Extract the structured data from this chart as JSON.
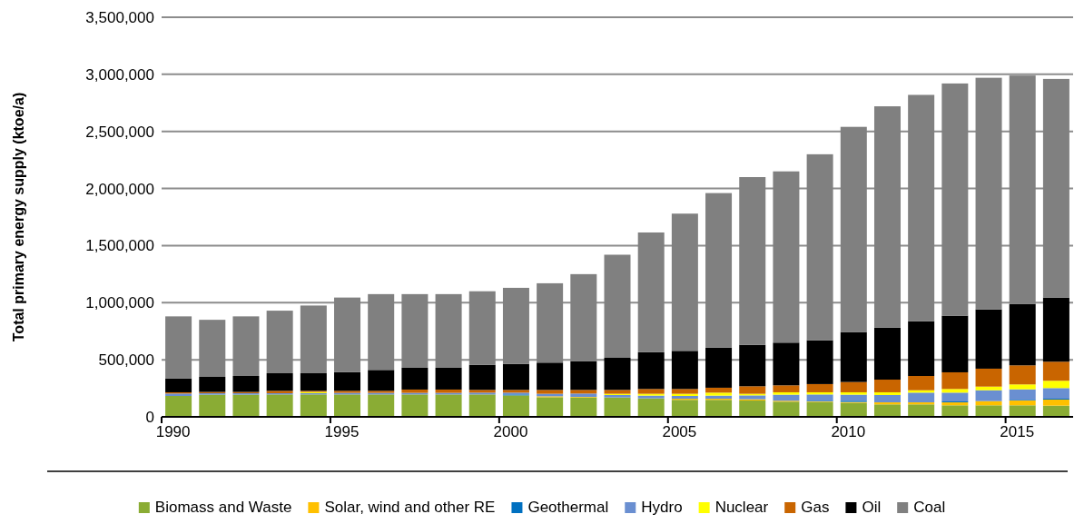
{
  "chart_data": {
    "type": "bar",
    "stacked": true,
    "ylabel": "Total primary energy supply (ktoe/a)",
    "categories": [
      "1990",
      null,
      null,
      null,
      null,
      "1995",
      null,
      null,
      null,
      null,
      "2000",
      null,
      null,
      null,
      null,
      "2005",
      null,
      null,
      null,
      null,
      "2010",
      null,
      null,
      null,
      null,
      "2015",
      null
    ],
    "ylim": [
      0,
      3500000
    ],
    "yticks": [
      {
        "value": 0,
        "label": "0"
      },
      {
        "value": 500000,
        "label": "500,000"
      },
      {
        "value": 1000000,
        "label": "1,000,000"
      },
      {
        "value": 1500000,
        "label": "1,500,000"
      },
      {
        "value": 2000000,
        "label": "2,000,000"
      },
      {
        "value": 2500000,
        "label": "2,500,000"
      },
      {
        "value": 3000000,
        "label": "3,000,000"
      },
      {
        "value": 3500000,
        "label": "3,500,000"
      }
    ],
    "grid": "y",
    "legend": "bottom",
    "series": [
      {
        "name": "Biomass and Waste",
        "color": "#8aac34",
        "values": [
          183000,
          194000,
          194000,
          196000,
          196000,
          196000,
          196000,
          196000,
          196000,
          196000,
          188000,
          172000,
          170000,
          170000,
          162000,
          149000,
          149000,
          143000,
          133000,
          130000,
          122000,
          109000,
          109000,
          101000,
          101000,
          101000,
          98000
        ]
      },
      {
        "name": "Solar, wind and other RE",
        "color": "#ffc000",
        "values": [
          0,
          0,
          0,
          0,
          0,
          0,
          0,
          0,
          0,
          0,
          0,
          8000,
          5000,
          0,
          0,
          10000,
          10000,
          11000,
          8000,
          5000,
          8000,
          18000,
          18000,
          26000,
          37000,
          42000,
          53000
        ]
      },
      {
        "name": "Geothermal",
        "color": "#0070c0",
        "values": [
          0,
          0,
          0,
          0,
          0,
          0,
          0,
          0,
          0,
          0,
          8000,
          0,
          0,
          0,
          0,
          0,
          0,
          0,
          0,
          6000,
          11000,
          0,
          0,
          8000,
          0,
          6000,
          8000
        ]
      },
      {
        "name": "Hydro",
        "color": "#6a8fd1",
        "values": [
          21000,
          13000,
          13000,
          11000,
          11000,
          14000,
          14000,
          14000,
          14000,
          16000,
          16000,
          22000,
          29000,
          21000,
          24000,
          24000,
          27000,
          34000,
          53000,
          55000,
          53000,
          64000,
          85000,
          77000,
          95000,
          92000,
          93000
        ]
      },
      {
        "name": "Nuclear",
        "color": "#ffff00",
        "values": [
          0,
          0,
          0,
          0,
          11000,
          0,
          0,
          0,
          0,
          0,
          0,
          0,
          0,
          11000,
          16000,
          19000,
          26000,
          14000,
          21000,
          19000,
          21000,
          24000,
          21000,
          32000,
          32000,
          43000,
          64000
        ]
      },
      {
        "name": "Gas",
        "color": "#c96500",
        "values": [
          11000,
          11000,
          11000,
          21000,
          10000,
          18000,
          18000,
          29000,
          29000,
          24000,
          24000,
          34000,
          32000,
          34000,
          42000,
          42000,
          43000,
          66000,
          61000,
          72000,
          90000,
          111000,
          125000,
          146000,
          157000,
          167000,
          167000
        ]
      },
      {
        "name": "Oil",
        "color": "#000000",
        "values": [
          122000,
          132000,
          140000,
          154000,
          154000,
          164000,
          183000,
          191000,
          191000,
          220000,
          228000,
          239000,
          252000,
          281000,
          323000,
          334000,
          352000,
          363000,
          374000,
          384000,
          438000,
          456000,
          480000,
          496000,
          519000,
          538000,
          562000
        ]
      },
      {
        "name": "Coal",
        "color": "#808080",
        "values": [
          543000,
          500000,
          522000,
          548000,
          593000,
          653000,
          664000,
          645000,
          645000,
          644000,
          666000,
          695000,
          762000,
          903000,
          1048000,
          1202000,
          1353000,
          1469000,
          1500000,
          1629000,
          1797000,
          1938000,
          1982000,
          2034000,
          2029000,
          2001000,
          1915000
        ]
      }
    ]
  }
}
